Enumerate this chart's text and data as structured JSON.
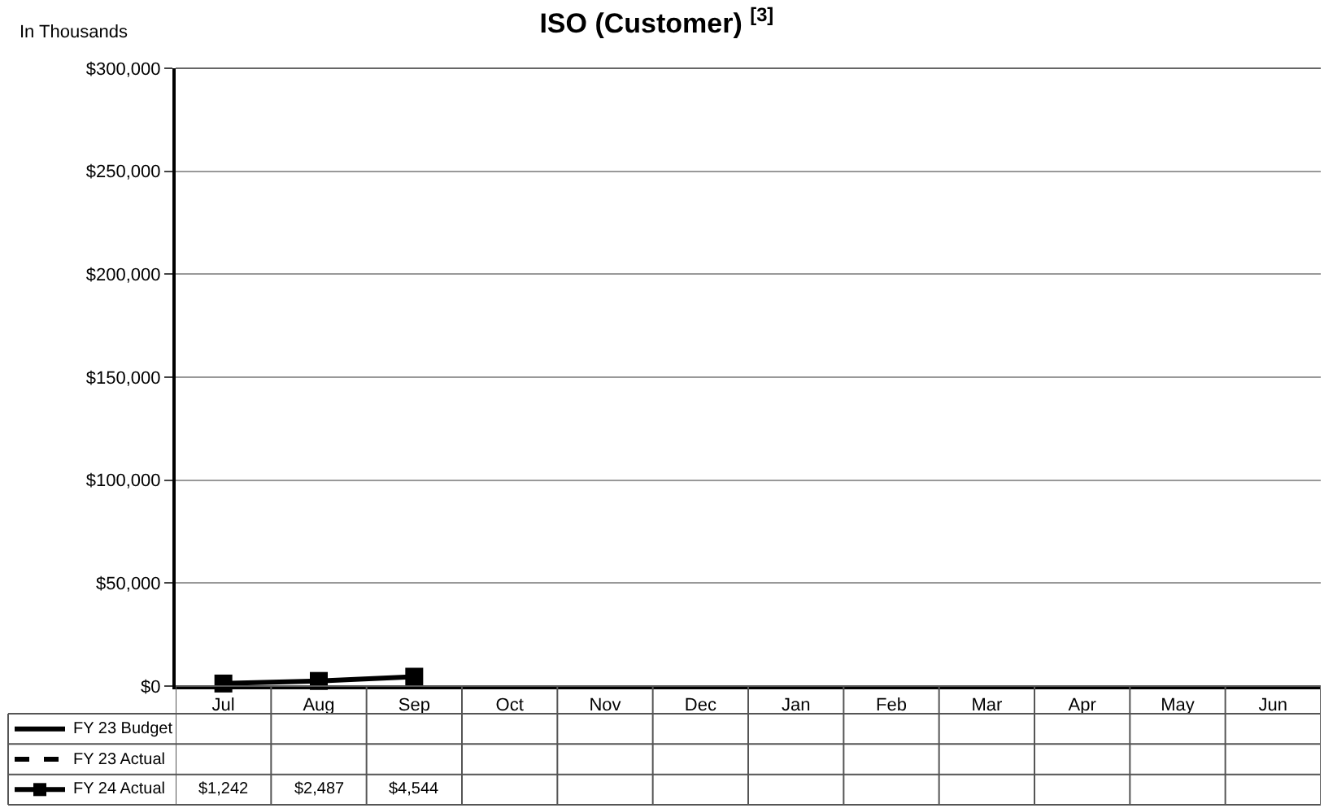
{
  "chart_data": {
    "type": "line",
    "title": "ISO (Customer) $^{[3]}$",
    "ylabel": "In Thousands",
    "categories": [
      "Jul",
      "Aug",
      "Sep",
      "Oct",
      "Nov",
      "Dec",
      "Jan",
      "Feb",
      "Mar",
      "Apr",
      "May",
      "Jun"
    ],
    "series": [
      {
        "name": "FY 23 Budget",
        "color": "#000000",
        "line_style": "solid",
        "marker": "none",
        "values": [
          null,
          null,
          null,
          null,
          null,
          null,
          null,
          null,
          null,
          null,
          null,
          null
        ]
      },
      {
        "name": "FY 23 Actual",
        "color": "#000000",
        "line_style": "dashed",
        "marker": "none",
        "values": [
          null,
          null,
          null,
          null,
          null,
          null,
          null,
          null,
          null,
          null,
          null,
          null
        ]
      },
      {
        "name": "FY 24 Actual",
        "color": "#000000",
        "line_style": "solid",
        "marker": "square",
        "values": [
          1242,
          2487,
          4544,
          null,
          null,
          null,
          null,
          null,
          null,
          null,
          null,
          null
        ],
        "value_labels": [
          "$1,242",
          "$2,487",
          "$4,544",
          null,
          null,
          null,
          null,
          null,
          null,
          null,
          null,
          null
        ]
      }
    ],
    "ylim": [
      0,
      300000
    ],
    "yticks": [
      {
        "value": 0,
        "label": "$0"
      },
      {
        "value": 50000,
        "label": "$50,000"
      },
      {
        "value": 100000,
        "label": "$100,000"
      },
      {
        "value": 150000,
        "label": "$150,000"
      },
      {
        "value": 200000,
        "label": "$200,000"
      },
      {
        "value": 250000,
        "label": "$250,000"
      },
      {
        "value": 300000,
        "label": "$300,000"
      }
    ],
    "grid": "y",
    "legend": "bottom"
  }
}
